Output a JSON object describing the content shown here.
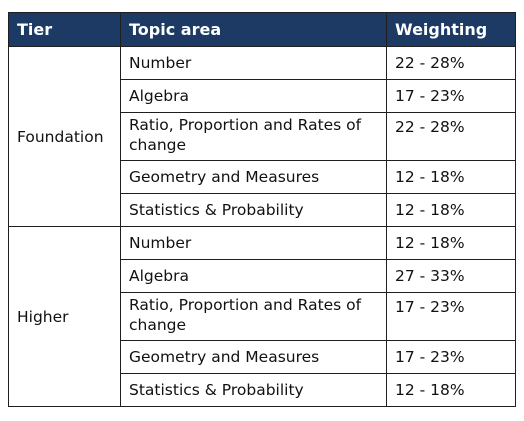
{
  "table": {
    "headers": [
      "Tier",
      "Topic area",
      "Weighting"
    ],
    "groups": [
      {
        "tier": "Foundation",
        "rows": [
          {
            "topic": "Number",
            "weighting": "22 - 28%"
          },
          {
            "topic": "Algebra",
            "weighting": "17 - 23%"
          },
          {
            "topic": "Ratio, Proportion and Rates of change",
            "weighting": "22 - 28%"
          },
          {
            "topic": "Geometry and Measures",
            "weighting": "12 - 18%"
          },
          {
            "topic": "Statistics & Probability",
            "weighting": "12 - 18%"
          }
        ]
      },
      {
        "tier": "Higher",
        "rows": [
          {
            "topic": "Number",
            "weighting": "12 - 18%"
          },
          {
            "topic": "Algebra",
            "weighting": "27 - 33%"
          },
          {
            "topic": "Ratio, Proportion and Rates of change",
            "weighting": "17 - 23%"
          },
          {
            "topic": "Geometry and Measures",
            "weighting": "17 - 23%"
          },
          {
            "topic": "Statistics & Probability",
            "weighting": "12 - 18%"
          }
        ]
      }
    ]
  }
}
